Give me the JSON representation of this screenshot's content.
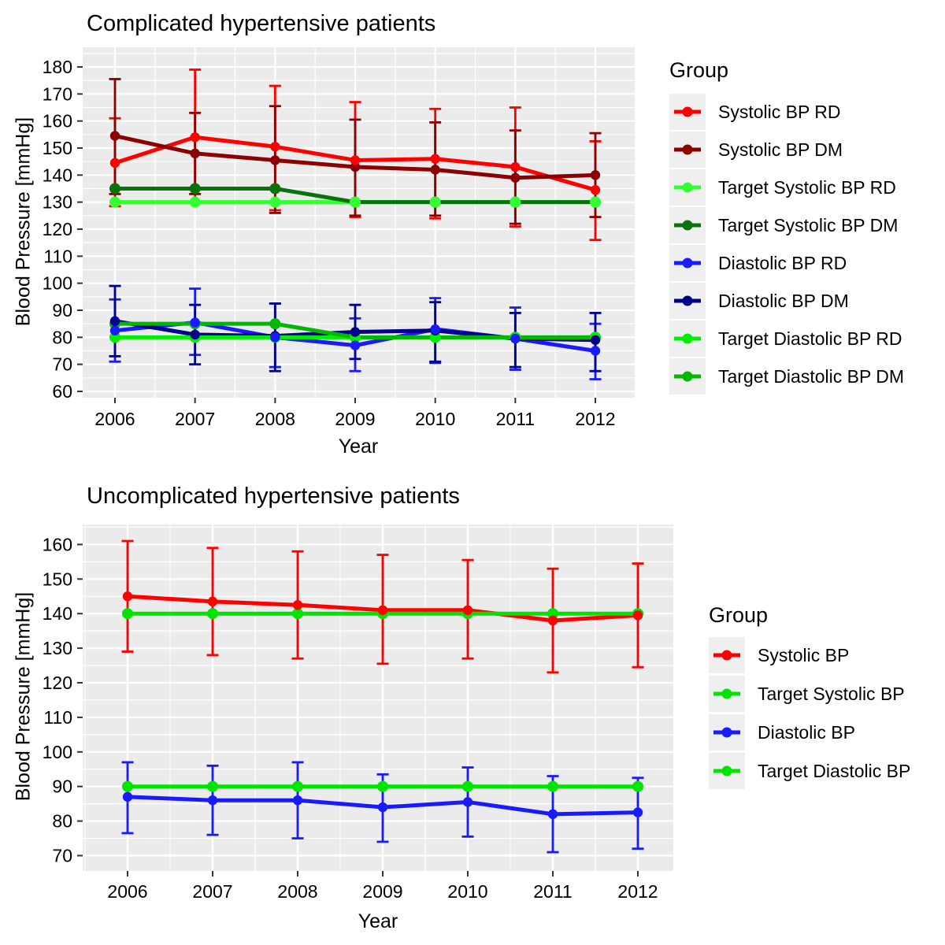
{
  "colors": {
    "panel": "#EBEBEB",
    "grid": "#FFFFFF",
    "tick": "#333333",
    "text": "#000000",
    "legend_key": "#EFEFEF"
  },
  "chart_data": [
    {
      "type": "line",
      "title": "Complicated hypertensive patients",
      "xlabel": "Year",
      "ylabel": "Blood Pressure [mmHg]",
      "legend_title": "Group",
      "legend_position": "right",
      "grid": true,
      "x": [
        2006,
        2007,
        2008,
        2009,
        2010,
        2011,
        2012
      ],
      "y_ticks": [
        60,
        70,
        80,
        90,
        100,
        110,
        120,
        130,
        140,
        150,
        160,
        170,
        180
      ],
      "ylim": [
        57,
        187
      ],
      "series": [
        {
          "name": "Systolic BP RD",
          "color": "#FF0000",
          "values": [
            144.5,
            154,
            150.5,
            145.5,
            146,
            143,
            134.5
          ],
          "err_lo": [
            128.5,
            130,
            127,
            124.5,
            124,
            121,
            116
          ],
          "err_hi": [
            161,
            179,
            173,
            167,
            164.5,
            165,
            152.5
          ]
        },
        {
          "name": "Systolic BP DM",
          "color": "#8B0000",
          "values": [
            154.5,
            148,
            145.5,
            143,
            142,
            139,
            140
          ],
          "err_lo": [
            133,
            133,
            126,
            125,
            125,
            122,
            124.5
          ],
          "err_hi": [
            175.5,
            163,
            165.5,
            160.5,
            159.5,
            156.5,
            155.5
          ]
        },
        {
          "name": "Target Systolic BP RD",
          "color": "#33FF33",
          "values": [
            130,
            130,
            130,
            130,
            130,
            130,
            130
          ]
        },
        {
          "name": "Target Systolic BP DM",
          "color": "#0A720A",
          "values": [
            135,
            135,
            135,
            130,
            130,
            130,
            130
          ]
        },
        {
          "name": "Diastolic BP RD",
          "color": "#1A1AFF",
          "values": [
            82.5,
            85.5,
            80,
            77,
            83,
            79.5,
            75
          ],
          "err_lo": [
            71,
            73.5,
            69,
            67.5,
            70.5,
            68,
            64.5
          ],
          "err_hi": [
            94,
            98,
            92.5,
            87,
            94.5,
            91,
            85
          ]
        },
        {
          "name": "Diastolic BP DM",
          "color": "#00008B",
          "values": [
            86,
            81,
            80.5,
            82,
            82.5,
            79.5,
            79
          ],
          "err_lo": [
            73,
            70,
            67.5,
            72,
            71,
            69,
            67.5
          ],
          "err_hi": [
            99,
            92,
            92.5,
            92,
            93,
            89,
            89
          ]
        },
        {
          "name": "Target Diastolic BP RD",
          "color": "#00EE00",
          "values": [
            80,
            80,
            80,
            80,
            80,
            80,
            80
          ]
        },
        {
          "name": "Target Diastolic BP DM",
          "color": "#00B800",
          "values": [
            85,
            85,
            85,
            80,
            80,
            80,
            80
          ]
        }
      ]
    },
    {
      "type": "line",
      "title": "Uncomplicated hypertensive patients",
      "xlabel": "Year",
      "ylabel": "Blood Pressure [mmHg]",
      "legend_title": "Group",
      "legend_position": "right",
      "grid": true,
      "x": [
        2006,
        2007,
        2008,
        2009,
        2010,
        2011,
        2012
      ],
      "y_ticks": [
        70,
        80,
        90,
        100,
        110,
        120,
        130,
        140,
        150,
        160
      ],
      "ylim": [
        66,
        166
      ],
      "series": [
        {
          "name": "Systolic BP",
          "color": "#FF0000",
          "values": [
            145,
            143.5,
            142.5,
            141,
            141,
            138,
            139.5
          ],
          "err_lo": [
            129,
            128,
            127,
            125.5,
            127,
            123,
            124.5
          ],
          "err_hi": [
            161,
            159,
            158,
            157,
            155.5,
            153,
            154.5
          ]
        },
        {
          "name": "Target Systolic BP",
          "color": "#00E400",
          "values": [
            140,
            140,
            140,
            140,
            140,
            140,
            140
          ]
        },
        {
          "name": "Diastolic BP",
          "color": "#1A1AFF",
          "values": [
            87,
            86,
            86,
            84,
            85.5,
            82,
            82.5
          ],
          "err_lo": [
            76.5,
            76,
            75,
            74,
            75.5,
            71,
            72
          ],
          "err_hi": [
            97,
            96,
            97,
            93.5,
            95.5,
            93,
            92.5
          ]
        },
        {
          "name": "Target Diastolic BP",
          "color": "#00E400",
          "values": [
            90,
            90,
            90,
            90,
            90,
            90,
            90
          ]
        }
      ]
    }
  ]
}
